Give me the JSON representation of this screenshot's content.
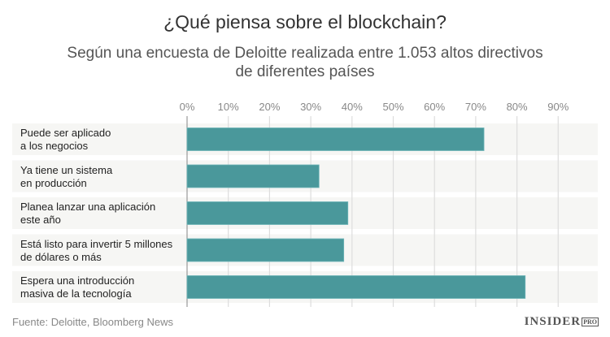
{
  "chart_data": {
    "type": "bar",
    "orientation": "horizontal",
    "title": "¿Qué piensa sobre el blockchain?",
    "subtitle": "Según una encuesta de Deloitte realizada entre 1.053 altos directivos de diferentes países",
    "categories": [
      [
        "Puede ser aplicado",
        "a los negocios"
      ],
      [
        "Ya tiene un sistema",
        "en producción"
      ],
      [
        "Planea lanzar una aplicación",
        "este año"
      ],
      [
        "Está listo para invertir 5 millones",
        "de dólares o más"
      ],
      [
        "Espera una introducción",
        "masiva de la tecnología"
      ]
    ],
    "values": [
      72,
      32,
      39,
      38,
      82
    ],
    "xlim": [
      0,
      90
    ],
    "ticks": [
      "0%",
      "10%",
      "20%",
      "30%",
      "40%",
      "50%",
      "60%",
      "70%",
      "80%",
      "90%"
    ],
    "grid": true,
    "bar_color": "#4a989b",
    "source": "Fuente: Deloitte, Bloomberg News"
  },
  "logo": {
    "main": "INSIDER",
    "badge": "PRO"
  }
}
